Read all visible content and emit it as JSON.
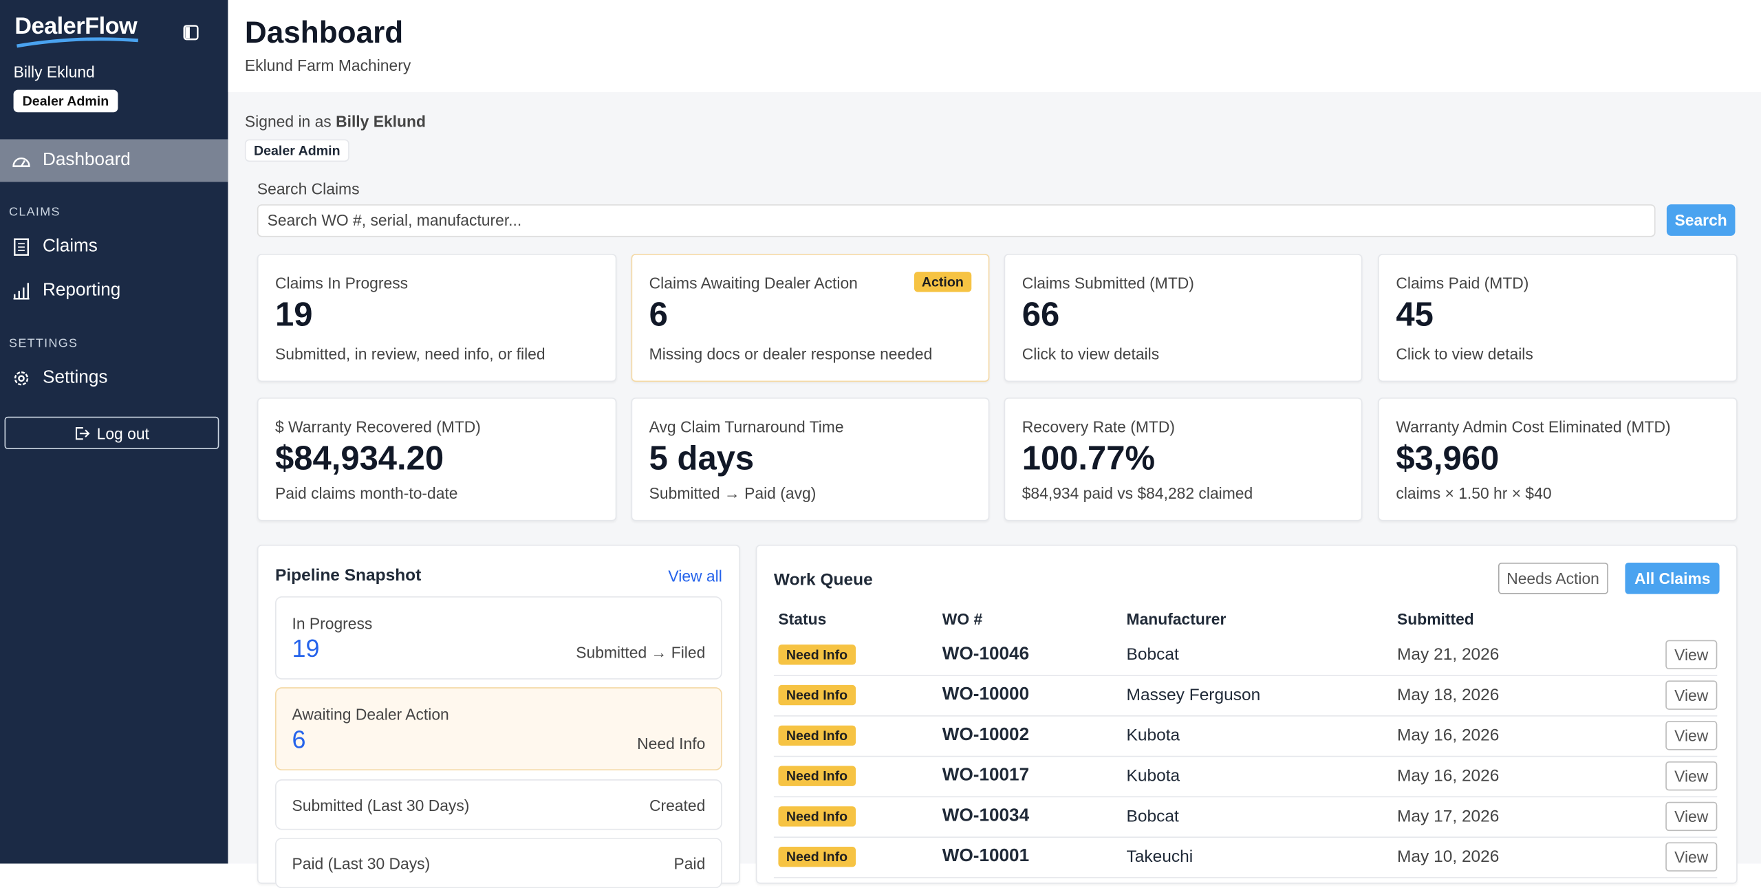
{
  "sidebar": {
    "brand": "DealerFlow",
    "user": "Billy Eklund",
    "role": "Dealer Admin",
    "nav": [
      {
        "label": "Dashboard"
      },
      {
        "section": "CLAIMS"
      },
      {
        "label": "Claims"
      },
      {
        "label": "Reporting"
      },
      {
        "section": "SETTINGS"
      },
      {
        "label": "Settings"
      }
    ],
    "logout": "Log out"
  },
  "header": {
    "title": "Dashboard",
    "subtitle": "Eklund Farm Machinery"
  },
  "signed_in": {
    "prefix": "Signed in as",
    "name": "Billy Eklund",
    "role": "Dealer Admin"
  },
  "search": {
    "label": "Search Claims",
    "placeholder": "Search WO #, serial, manufacturer...",
    "button": "Search"
  },
  "cards": [
    {
      "label": "Claims In Progress",
      "value": "19",
      "note": "Submitted, in review, need info, or filed"
    },
    {
      "label": "Claims Awaiting Dealer Action",
      "value": "6",
      "note": "Missing docs or dealer response needed",
      "badge": "Action"
    },
    {
      "label": "Claims Submitted (MTD)",
      "value": "66",
      "note": "Click to view details"
    },
    {
      "label": "Claims Paid (MTD)",
      "value": "45",
      "note": "Click to view details"
    },
    {
      "label": "$ Warranty Recovered (MTD)",
      "value": "$84,934.20",
      "note": "Paid claims month-to-date"
    },
    {
      "label": "Avg Claim Turnaround Time",
      "value": "5 days",
      "note": "Submitted → Paid (avg)"
    },
    {
      "label": "Recovery Rate (MTD)",
      "value": "100.77%",
      "note": "$84,934 paid vs $84,282 claimed"
    },
    {
      "label": "Warranty Admin Cost Eliminated (MTD)",
      "value": "$3,960",
      "note": "claims × 1.50 hr × $40"
    }
  ],
  "pipeline": {
    "title": "Pipeline Snapshot",
    "link": "View all",
    "items": [
      {
        "label": "In Progress",
        "value": "19",
        "note": "Submitted → Filed"
      },
      {
        "label": "Awaiting Dealer Action",
        "value": "6",
        "note": "Need Info"
      },
      {
        "label": "Submitted (Last 30 Days)",
        "note": "Created"
      },
      {
        "label": "Paid (Last 30 Days)",
        "note": "Paid"
      }
    ]
  },
  "work_queue": {
    "title": "Work Queue",
    "buttons": [
      "Needs Action",
      "All Claims"
    ],
    "columns": [
      "Status",
      "WO #",
      "Manufacturer",
      "Submitted"
    ],
    "rows": [
      [
        "Need Info",
        "WO-10046",
        "Bobcat",
        "May 21, 2026",
        "View"
      ],
      [
        "Need Info",
        "WO-10000",
        "Massey Ferguson",
        "May 18, 2026",
        "View"
      ],
      [
        "Need Info",
        "WO-10002",
        "Kubota",
        "May 16, 2026",
        "View"
      ],
      [
        "Need Info",
        "WO-10017",
        "Kubota",
        "May 16, 2026",
        "View"
      ],
      [
        "Need Info",
        "WO-10034",
        "Bobcat",
        "May 17, 2026",
        "View"
      ],
      [
        "Need Info",
        "WO-10001",
        "Takeuchi",
        "May 10, 2026",
        "View"
      ]
    ]
  }
}
